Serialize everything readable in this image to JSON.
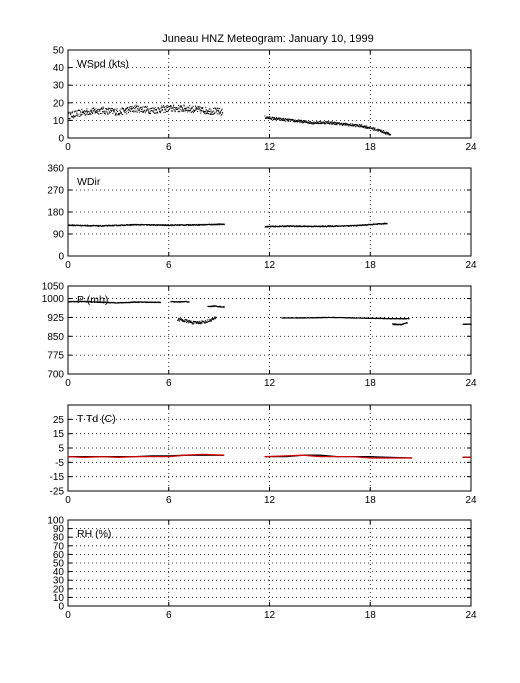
{
  "title": "Juneau HNZ Meteogram:    January 10, 1999",
  "chart_data": [
    {
      "type": "scatter",
      "label": "WSpd (kts)",
      "xlim": [
        0,
        24
      ],
      "ylim": [
        0,
        50
      ],
      "xticks": [
        0,
        6,
        12,
        18,
        24
      ],
      "yticks": [
        0,
        10,
        20,
        30,
        40,
        50
      ],
      "grid": true,
      "segments": [
        {
          "x": [
            0,
            1,
            2,
            3,
            4,
            5,
            6,
            7,
            8,
            9.2
          ],
          "y": [
            13,
            15,
            16,
            15,
            17,
            16,
            17,
            17,
            16,
            15
          ],
          "spread": 4,
          "color": "#000000"
        },
        {
          "x": [
            11.7,
            12.5,
            13.5,
            14.5,
            15.5,
            16.5,
            17.5,
            18,
            18.7,
            19.2
          ],
          "y": [
            12,
            11,
            10,
            9,
            9,
            8,
            7,
            6,
            4,
            2
          ],
          "spread": 1.5,
          "color": "#000000"
        }
      ]
    },
    {
      "type": "scatter",
      "label": "WDir",
      "xlim": [
        0,
        24
      ],
      "ylim": [
        0,
        360
      ],
      "xticks": [
        0,
        6,
        12,
        18,
        24
      ],
      "yticks": [
        0,
        90,
        180,
        270,
        360
      ],
      "grid": true,
      "segments": [
        {
          "x": [
            0,
            2,
            4,
            6,
            8,
            9.3
          ],
          "y": [
            128,
            125,
            130,
            128,
            130,
            132
          ],
          "spread": 4,
          "color": "#000000"
        },
        {
          "x": [
            11.7,
            13,
            15,
            17,
            19
          ],
          "y": [
            122,
            124,
            123,
            126,
            135
          ],
          "spread": 4,
          "color": "#000000"
        }
      ]
    },
    {
      "type": "scatter",
      "label": "P (mb)",
      "xlim": [
        0,
        24
      ],
      "ylim": [
        700,
        1050
      ],
      "xticks": [
        0,
        6,
        12,
        18,
        24
      ],
      "yticks": [
        700,
        775,
        850,
        925,
        1000,
        1050
      ],
      "grid": true,
      "segments": [
        {
          "x": [
            0,
            1,
            2,
            3,
            4,
            5.5
          ],
          "y": [
            990,
            990,
            987,
            985,
            988,
            987
          ],
          "spread": 3,
          "color": "#000000"
        },
        {
          "x": [
            6.1,
            6.5,
            7.0,
            7.2
          ],
          "y": [
            990,
            988,
            990,
            988
          ],
          "spread": 3,
          "color": "#000000"
        },
        {
          "x": [
            8.3,
            8.7,
            9.3
          ],
          "y": [
            970,
            972,
            968
          ],
          "spread": 3,
          "color": "#000000"
        },
        {
          "x": [
            6.5,
            7.5,
            8.2,
            8.8
          ],
          "y": [
            920,
            905,
            910,
            925
          ],
          "spread": 12,
          "color": "#000000"
        },
        {
          "x": [
            12.7,
            14,
            15.5,
            17,
            19.2,
            20.3
          ],
          "y": [
            925,
            925,
            927,
            925,
            922,
            922
          ],
          "spread": 2,
          "color": "#000000"
        },
        {
          "x": [
            19.3,
            19.8,
            20.2
          ],
          "y": [
            900,
            898,
            905
          ],
          "spread": 4,
          "color": "#000000"
        },
        {
          "x": [
            23.5,
            24
          ],
          "y": [
            900,
            900
          ],
          "spread": 1,
          "color": "#000000"
        }
      ]
    },
    {
      "type": "line",
      "label": "T Td (C)",
      "xlim": [
        0,
        24
      ],
      "ylim": [
        -25,
        35
      ],
      "xticks": [
        0,
        6,
        12,
        18,
        24
      ],
      "yticks": [
        -25,
        -15,
        -5,
        5,
        15,
        25
      ],
      "grid": true,
      "series": [
        {
          "x": [
            0,
            1,
            2,
            3,
            4,
            5,
            6,
            7,
            8,
            9.3
          ],
          "y": [
            -1,
            -1,
            -1,
            -1,
            -1,
            -0.5,
            -0.5,
            0,
            0,
            0
          ],
          "color": "#000000"
        },
        {
          "x": [
            0,
            1,
            2,
            3,
            4,
            5,
            6,
            7,
            8,
            9.3
          ],
          "y": [
            -1,
            -1.5,
            -1,
            -1.5,
            -1,
            -1,
            -1,
            0,
            0.5,
            0
          ],
          "color": "#d00000"
        },
        {
          "x": [
            11.7,
            13,
            14,
            15,
            16,
            17,
            18,
            19,
            20.5
          ],
          "y": [
            -1,
            -1,
            0,
            0,
            -1,
            -1,
            -1,
            -1.5,
            -2
          ],
          "color": "#000000"
        },
        {
          "x": [
            11.7,
            13,
            14,
            15,
            16,
            17,
            18,
            19,
            20.5
          ],
          "y": [
            -1,
            -0.5,
            0,
            -1,
            -1,
            -1,
            -2,
            -2,
            -2
          ],
          "color": "#d00000"
        },
        {
          "x": [
            23.5,
            24
          ],
          "y": [
            -1.5,
            -1.5
          ],
          "color": "#000000"
        },
        {
          "x": [
            23.5,
            24
          ],
          "y": [
            -1.5,
            -1.5
          ],
          "color": "#d00000"
        }
      ]
    },
    {
      "type": "line",
      "label": "RH (%)",
      "xlim": [
        0,
        24
      ],
      "ylim": [
        0,
        100
      ],
      "xticks": [
        0,
        6,
        12,
        18,
        24
      ],
      "yticks": [
        0,
        10,
        20,
        30,
        40,
        50,
        60,
        70,
        80,
        90,
        100
      ],
      "grid": true,
      "series": []
    }
  ]
}
